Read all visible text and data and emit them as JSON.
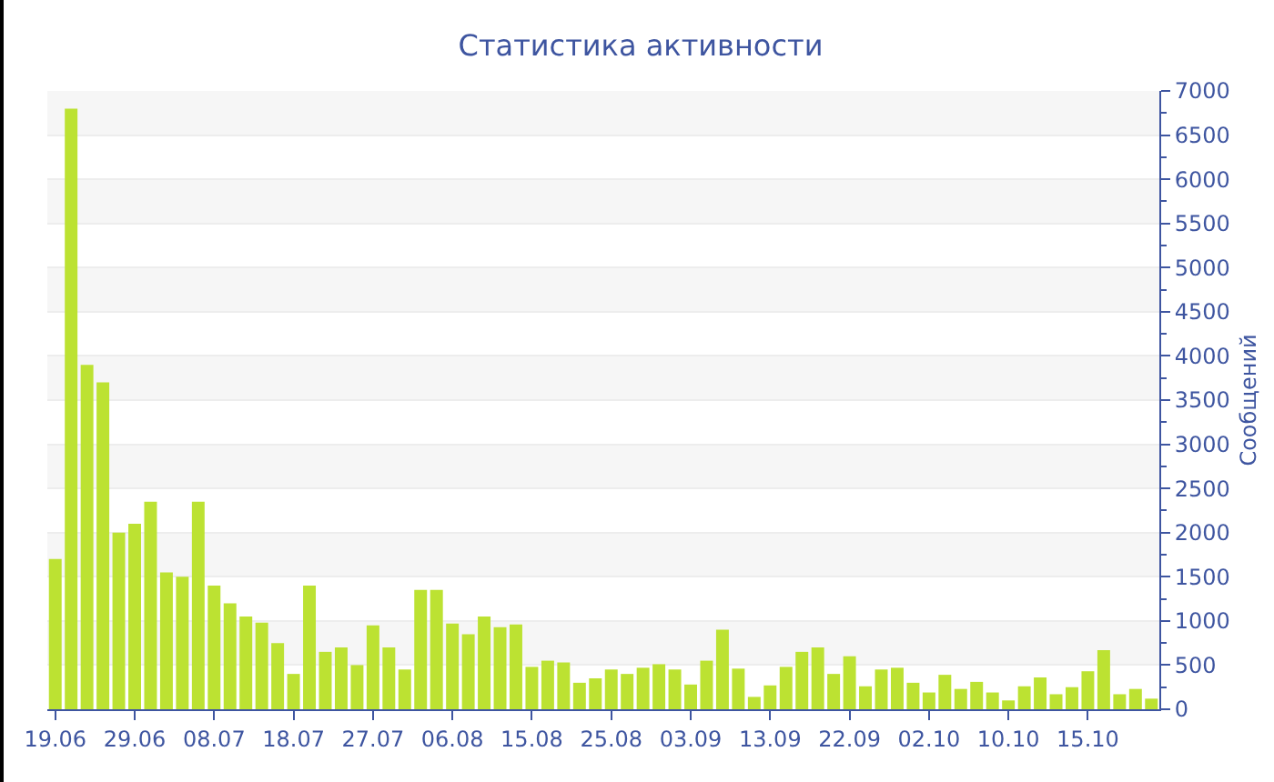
{
  "chart_data": {
    "type": "bar",
    "title": "Статистика активности",
    "ylabel": "Сообщений",
    "categories": [
      "19.06",
      null,
      null,
      null,
      null,
      "29.06",
      null,
      null,
      null,
      null,
      "08.07",
      null,
      null,
      null,
      null,
      "18.07",
      null,
      null,
      null,
      null,
      "27.07",
      null,
      null,
      null,
      null,
      "06.08",
      null,
      null,
      null,
      null,
      "15.08",
      null,
      null,
      null,
      null,
      "25.08",
      null,
      null,
      null,
      null,
      "03.09",
      null,
      null,
      null,
      null,
      "13.09",
      null,
      null,
      null,
      null,
      "22.09",
      null,
      null,
      null,
      null,
      "02.10",
      null,
      null,
      null,
      null,
      "10.10",
      null,
      null,
      null,
      null,
      "15.10",
      null,
      null,
      null,
      null
    ],
    "values": [
      1700,
      6800,
      3900,
      3700,
      2000,
      2100,
      2350,
      1550,
      1500,
      2350,
      1400,
      1200,
      1050,
      980,
      750,
      400,
      1400,
      650,
      700,
      500,
      950,
      700,
      450,
      1350,
      1350,
      970,
      850,
      1050,
      930,
      960,
      480,
      550,
      530,
      300,
      350,
      450,
      400,
      470,
      510,
      450,
      280,
      550,
      900,
      460,
      140,
      270,
      480,
      650,
      700,
      400,
      600,
      260,
      450,
      470,
      300,
      190,
      390,
      230,
      310,
      190,
      100,
      260,
      360,
      170,
      250,
      430,
      670,
      170,
      230,
      120
    ],
    "color": "#bce232",
    "ylim": [
      0,
      7000
    ],
    "yticks": [
      0,
      500,
      1000,
      1500,
      2000,
      2500,
      3000,
      3500,
      4000,
      4500,
      5000,
      5500,
      6000,
      6500,
      7000
    ],
    "grid": true
  }
}
